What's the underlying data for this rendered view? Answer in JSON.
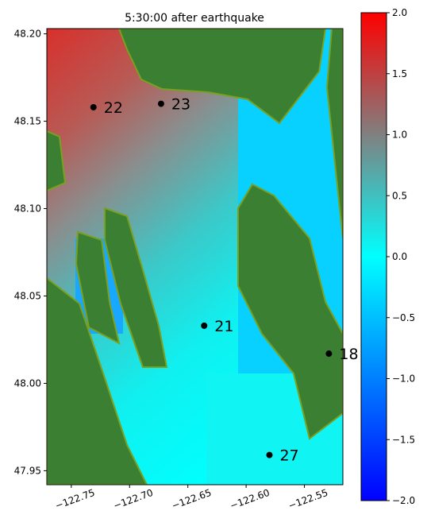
{
  "chart_data": {
    "type": "scatter",
    "title": "5:30:00 after earthquake",
    "x": [
      -122.731,
      -122.673,
      -122.636,
      -122.529,
      -122.58
    ],
    "values": [
      48.158,
      48.16,
      48.033,
      48.017,
      47.959
    ],
    "labels": [
      "22",
      "23",
      "21",
      "18",
      "27"
    ],
    "color": "#000000",
    "xlim": [
      -122.771,
      -122.517
    ],
    "ylim": [
      47.942,
      48.203
    ],
    "xticks": [
      {
        "value": -122.75,
        "label": "−122.75"
      },
      {
        "value": -122.7,
        "label": "−122.70"
      },
      {
        "value": -122.65,
        "label": "−122.65"
      },
      {
        "value": -122.6,
        "label": "−122.60"
      },
      {
        "value": -122.55,
        "label": "−122.55"
      }
    ],
    "yticks": [
      {
        "value": 47.95,
        "label": "47.95"
      },
      {
        "value": 48,
        "label": "48.00"
      },
      {
        "value": 48.05,
        "label": "48.05"
      },
      {
        "value": 48.1,
        "label": "48.10"
      },
      {
        "value": 48.15,
        "label": "48.15"
      },
      {
        "value": 48.2,
        "label": "48.20"
      }
    ],
    "colorbar": {
      "lim": [
        -2,
        2
      ],
      "ticks": [
        {
          "value": -2,
          "label": "−2.0"
        },
        {
          "value": -1.5,
          "label": "−1.5"
        },
        {
          "value": -1,
          "label": "−1.0"
        },
        {
          "value": -0.5,
          "label": "−0.5"
        },
        {
          "value": 0,
          "label": "0.0"
        },
        {
          "value": 0.5,
          "label": "0.5"
        },
        {
          "value": 1,
          "label": "1.0"
        },
        {
          "value": 1.5,
          "label": "1.5"
        },
        {
          "value": 2,
          "label": "2.0"
        }
      ]
    }
  }
}
